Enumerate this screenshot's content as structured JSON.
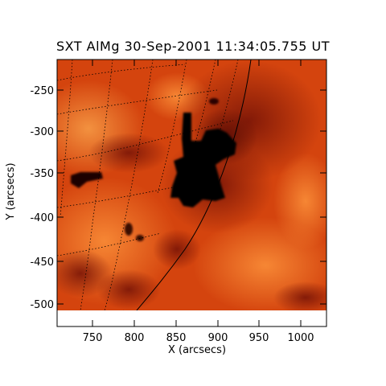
{
  "image": {
    "title": "SXT AlMg 30-Sep-2001 11:34:05.755 UT",
    "xlabel": "X (arcsecs)",
    "ylabel": "Y (arcsecs)",
    "x_ticks": [
      "750",
      "800",
      "850",
      "900",
      "950",
      "1000"
    ],
    "y_ticks": [
      "-250",
      "-300",
      "-350",
      "-400",
      "-450",
      "-500"
    ],
    "colors": {
      "background_orange": "#d9480f",
      "bright_orange": "#f47a2a",
      "dark_red": "#8c1a0a",
      "core_black": "#000000",
      "axis": "#000000"
    }
  }
}
